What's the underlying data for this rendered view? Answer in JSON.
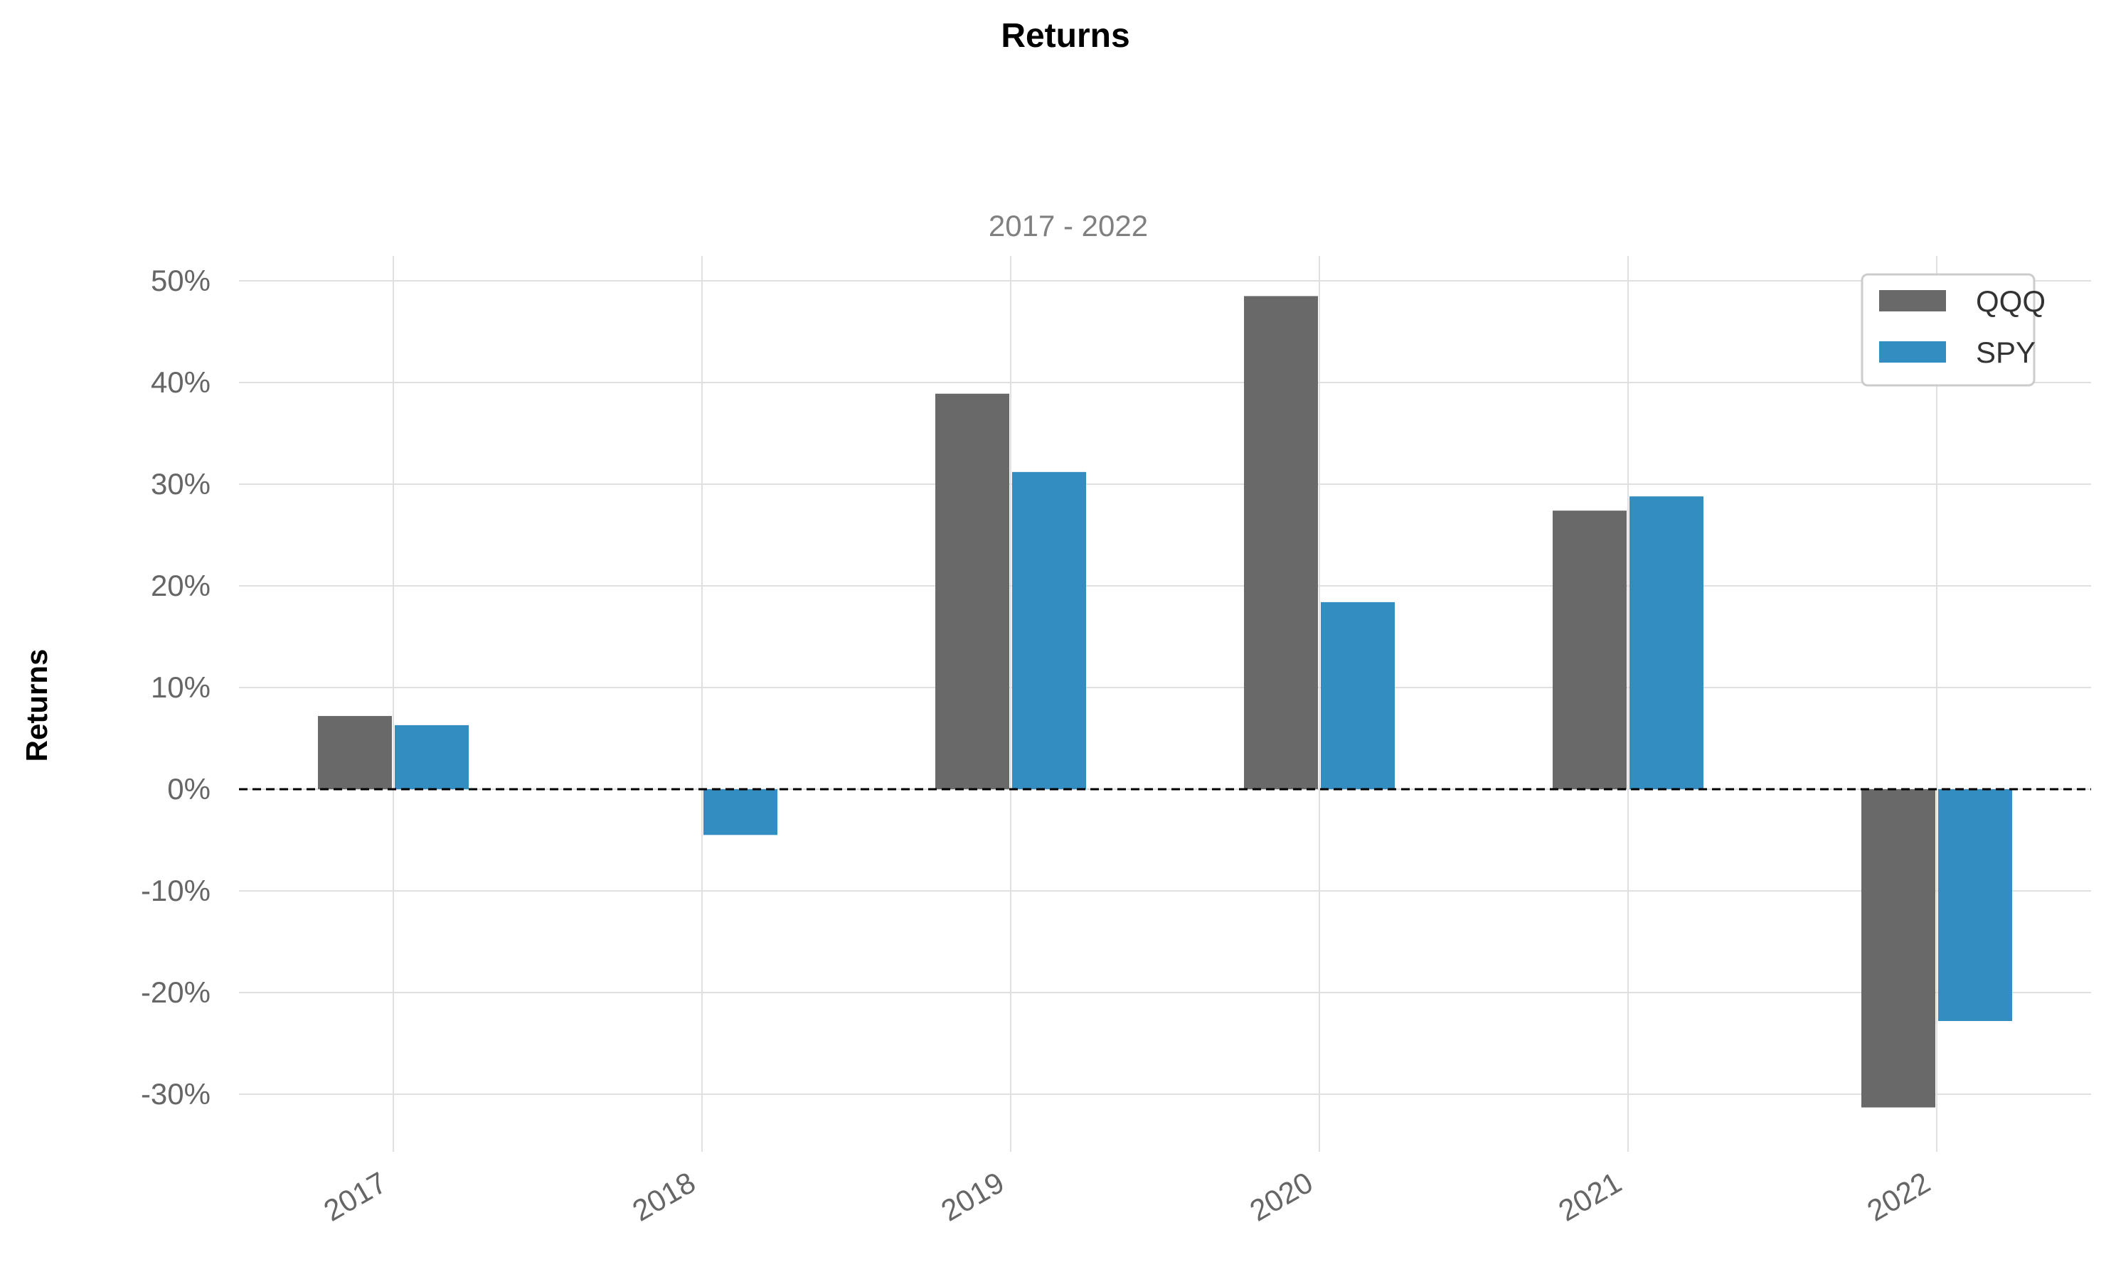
{
  "chart_data": {
    "type": "bar",
    "title": "Returns",
    "subtitle": "2017 - 2022",
    "ylabel": "Returns",
    "xlabel": "",
    "categories": [
      "2017",
      "2018",
      "2019",
      "2020",
      "2021",
      "2022"
    ],
    "series": [
      {
        "name": "QQQ",
        "color": "#696969",
        "values": [
          0.072,
          0.0,
          0.389,
          0.485,
          0.274,
          -0.313
        ]
      },
      {
        "name": "SPY",
        "color": "#348dc1",
        "values": [
          0.063,
          -0.045,
          0.312,
          0.184,
          0.288,
          -0.228
        ]
      }
    ],
    "ylim": [
      -0.35,
      0.52
    ],
    "yticks": [
      -0.3,
      -0.2,
      -0.1,
      0.0,
      0.1,
      0.2,
      0.3,
      0.4,
      0.5
    ],
    "ytick_labels": [
      "-30%",
      "-20%",
      "-10%",
      "0%",
      "10%",
      "20%",
      "30%",
      "40%",
      "50%"
    ],
    "grid": true,
    "zero_line": "dashed",
    "legend": "top-right",
    "xtick_rotation_deg": 30
  }
}
